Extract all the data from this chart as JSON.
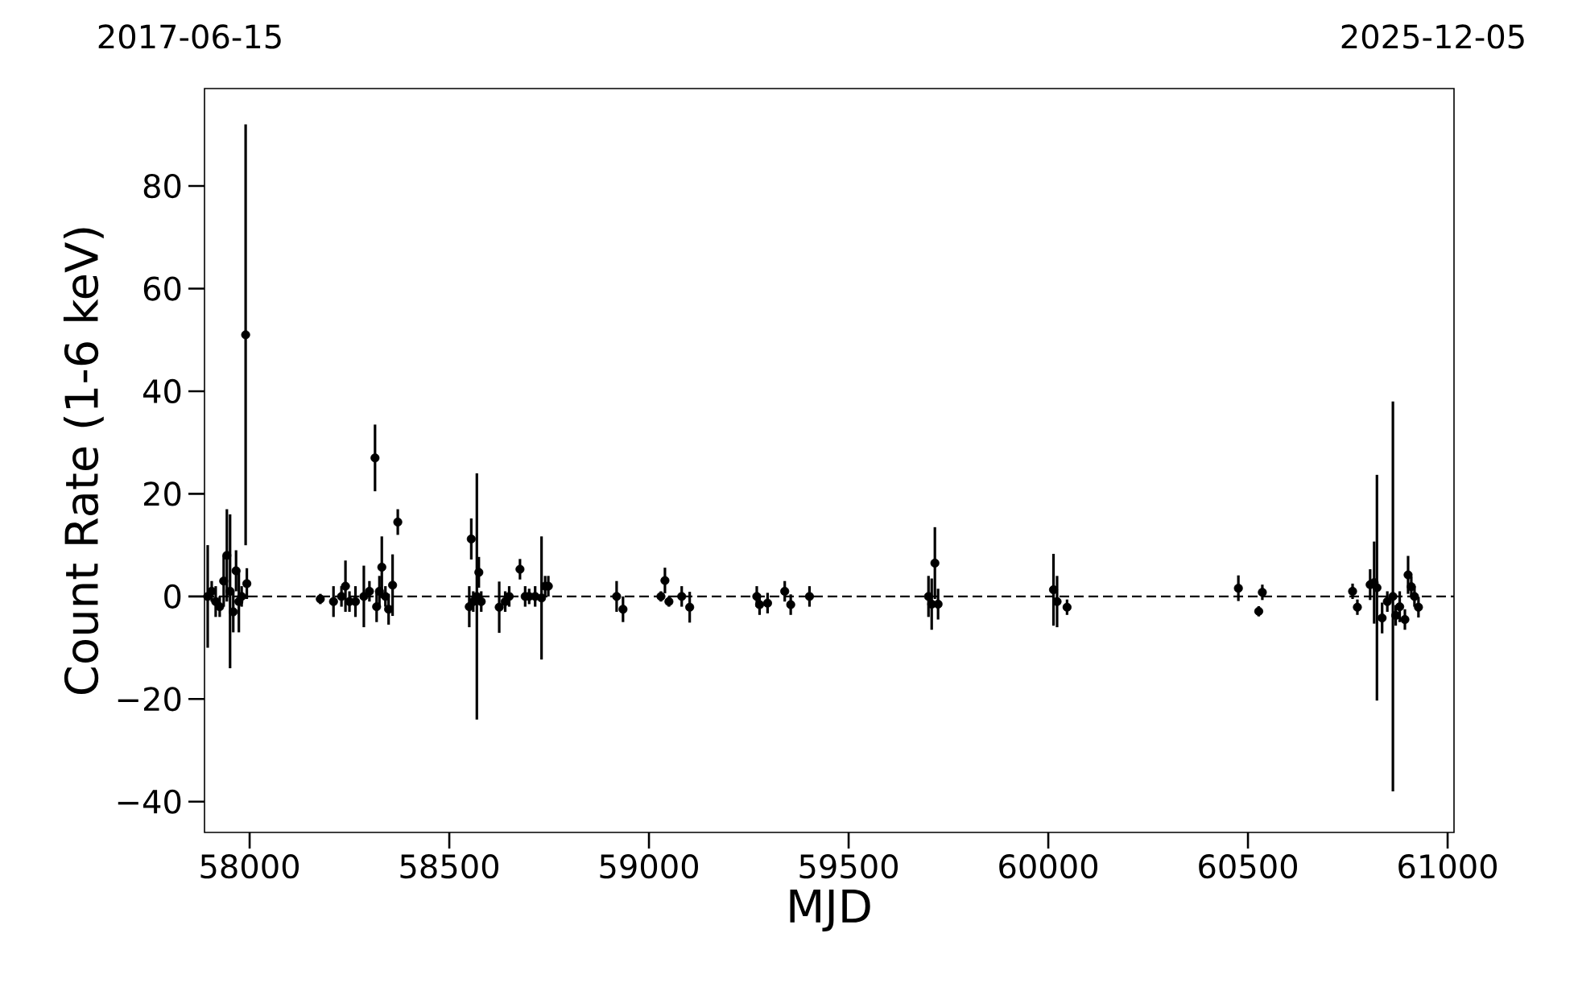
{
  "chart_data": {
    "type": "scatter",
    "xlabel": "MJD",
    "ylabel": "Count Rate (1-6 keV)",
    "annotations": [
      "2017-06-15",
      "2025-12-05"
    ],
    "xlim": [
      57887,
      61016
    ],
    "ylim": [
      -46,
      99
    ],
    "xticks": [
      58000,
      58500,
      59000,
      59500,
      60000,
      60500,
      61000
    ],
    "yticks": [
      {
        "value": -40,
        "label": "−40"
      },
      {
        "value": -20,
        "label": "−20"
      },
      {
        "value": 0,
        "label": "0"
      },
      {
        "value": 20,
        "label": "20"
      },
      {
        "value": 40,
        "label": "40"
      },
      {
        "value": 60,
        "label": "60"
      },
      {
        "value": 80,
        "label": "80"
      }
    ],
    "marker": "circle",
    "color": "#000000",
    "ref_lines": [
      {
        "axis": "y",
        "value": 0,
        "line_style": "dashed",
        "color": "#000000"
      }
    ],
    "x": [
      57895,
      57905,
      57915,
      57925,
      57935,
      57943,
      57951,
      57959,
      57966,
      57973,
      57980,
      57990,
      57993,
      58177,
      58210,
      58230,
      58240,
      58250,
      58265,
      58286,
      58300,
      58314,
      58318,
      58325,
      58331,
      58340,
      58358,
      58348,
      58371,
      58555,
      58550,
      58560,
      58569,
      58574,
      58580,
      58625,
      58640,
      58650,
      58677,
      58690,
      58700,
      58715,
      58731,
      58740,
      58748,
      58919,
      58935,
      59030,
      59040,
      59050,
      59082,
      59102,
      59270,
      59277,
      59297,
      59340,
      59355,
      59402,
      59700,
      59708,
      59716,
      59724,
      60013,
      60022,
      60047,
      60476,
      60527,
      60536,
      60762,
      60774,
      60806,
      60816,
      60823,
      60836,
      60849,
      60863,
      60870,
      60880,
      60893,
      60901,
      60909,
      60917,
      60927
    ],
    "values": [
      0,
      1,
      -1,
      -2,
      3,
      8,
      1,
      -3,
      5,
      -1,
      0,
      51,
      2.5,
      -0.5,
      -1,
      0,
      2,
      -1,
      -1,
      0,
      1,
      27,
      -2,
      1,
      5.7,
      0,
      2.2,
      -2.5,
      14.5,
      11.2,
      -2,
      -1,
      0,
      4.7,
      -1,
      -2.1,
      -1,
      0,
      5.3,
      0,
      0,
      0,
      -0.3,
      2,
      2,
      0,
      -2.5,
      0,
      3.1,
      -1,
      0,
      -2.1,
      0,
      -1.6,
      -1.3,
      1,
      -1.6,
      0,
      0,
      -1.5,
      6.5,
      -1.5,
      1.3,
      -1,
      -2.1,
      1.6,
      -2.9,
      0.8,
      1,
      -2.1,
      2.3,
      2.7,
      1.7,
      -4.2,
      -1,
      0,
      -3.7,
      -2,
      -4.5,
      4.2,
      1.9,
      0,
      -2.1
    ],
    "errors": [
      10,
      2,
      3,
      2,
      5,
      9,
      15,
      4,
      4,
      6,
      2,
      41,
      3,
      1,
      3,
      2,
      5,
      2,
      3,
      6,
      2,
      6.5,
      3,
      3,
      6,
      2,
      6,
      3,
      2.5,
      4,
      4,
      2,
      24,
      3,
      2,
      5,
      2,
      2,
      2,
      2,
      1.5,
      2,
      12,
      2,
      2,
      3,
      2.5,
      1,
      2.5,
      1,
      2,
      3,
      2,
      2,
      2,
      2,
      2,
      2,
      4,
      5,
      7,
      3,
      7,
      5,
      1.5,
      2.5,
      1,
      1.5,
      1.5,
      1.5,
      3,
      8,
      22,
      3,
      2,
      38,
      2,
      3,
      2,
      3.7,
      2,
      2,
      2
    ]
  }
}
